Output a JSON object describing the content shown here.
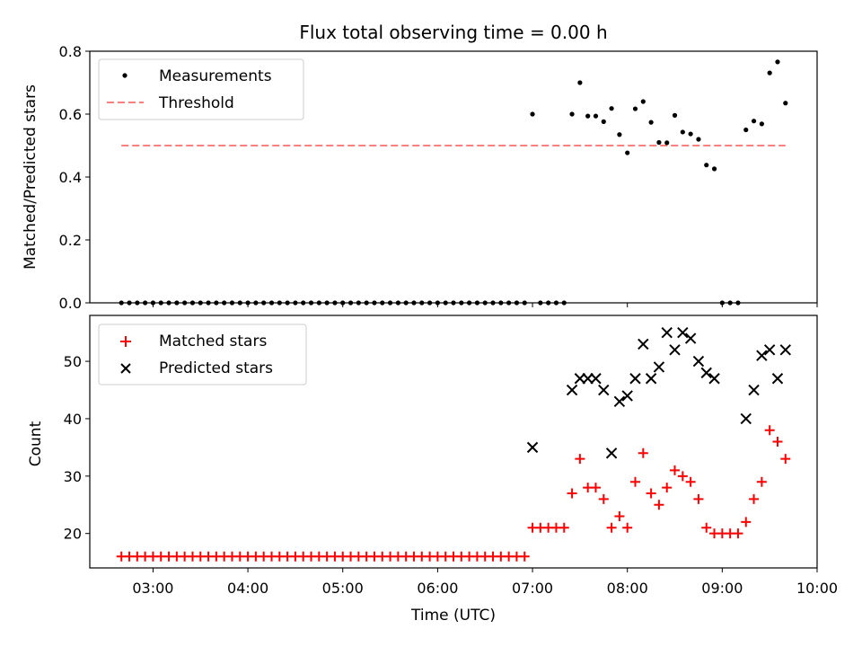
{
  "chart_data": [
    {
      "type": "scatter",
      "title": "Flux total observing time = 0.00 h",
      "xlabel": "",
      "ylabel": "Matched/Predicted stars",
      "xlim": [
        "02:20",
        "10:00"
      ],
      "ylim": [
        0,
        0.8
      ],
      "yticks": [
        "0.0",
        "0.2",
        "0.4",
        "0.6",
        "0.8"
      ],
      "legend": {
        "placement": "top-left",
        "labels": [
          "Measurements",
          "Threshold"
        ]
      },
      "threshold": {
        "value": 0.5,
        "x_from": "02:40",
        "x_to": "09:40",
        "color": "#ff7f7f"
      },
      "series": [
        {
          "name": "Measurements",
          "color": "#000000",
          "x": [
            "02:40",
            "02:45",
            "02:50",
            "02:55",
            "03:00",
            "03:05",
            "03:10",
            "03:15",
            "03:20",
            "03:25",
            "03:30",
            "03:35",
            "03:40",
            "03:45",
            "03:50",
            "03:55",
            "04:00",
            "04:05",
            "04:10",
            "04:15",
            "04:20",
            "04:25",
            "04:30",
            "04:35",
            "04:40",
            "04:45",
            "04:50",
            "04:55",
            "05:00",
            "05:05",
            "05:10",
            "05:15",
            "05:20",
            "05:25",
            "05:30",
            "05:35",
            "05:40",
            "05:45",
            "05:50",
            "05:55",
            "06:00",
            "06:05",
            "06:10",
            "06:15",
            "06:20",
            "06:25",
            "06:30",
            "06:35",
            "06:40",
            "06:45",
            "06:50",
            "06:55",
            "07:00",
            "07:05",
            "07:10",
            "07:15",
            "07:20",
            "07:25",
            "07:30",
            "07:35",
            "07:40",
            "07:45",
            "07:50",
            "07:55",
            "08:00",
            "08:05",
            "08:10",
            "08:15",
            "08:20",
            "08:25",
            "08:30",
            "08:35",
            "08:40",
            "08:45",
            "08:50",
            "08:55",
            "09:00",
            "09:05",
            "09:10",
            "09:15",
            "09:20",
            "09:25",
            "09:30",
            "09:35",
            "09:40"
          ],
          "y": [
            0,
            0,
            0,
            0,
            0,
            0,
            0,
            0,
            0,
            0,
            0,
            0,
            0,
            0,
            0,
            0,
            0,
            0,
            0,
            0,
            0,
            0,
            0,
            0,
            0,
            0,
            0,
            0,
            0,
            0,
            0,
            0,
            0,
            0,
            0,
            0,
            0,
            0,
            0,
            0,
            0,
            0,
            0,
            0,
            0,
            0,
            0,
            0,
            0,
            0,
            0,
            0,
            0.6,
            0,
            0,
            0,
            0,
            0.6,
            0.7,
            0.594,
            0.594,
            0.576,
            0.618,
            0.535,
            0.477,
            0.617,
            0.64,
            0.574,
            0.51,
            0.509,
            0.596,
            0.543,
            0.537,
            0.52,
            0.438,
            0.426,
            0,
            0,
            0,
            0.55,
            0.578,
            0.569,
            0.731,
            0.766,
            0.635
          ]
        }
      ]
    },
    {
      "type": "scatter",
      "title": "",
      "xlabel": "Time (UTC)",
      "ylabel": "Count",
      "xlim": [
        "02:20",
        "10:00"
      ],
      "ylim": [
        14,
        58
      ],
      "xticks": [
        "03:00",
        "04:00",
        "05:00",
        "06:00",
        "07:00",
        "08:00",
        "09:00",
        "10:00"
      ],
      "yticks": [
        "20",
        "30",
        "40",
        "50"
      ],
      "legend": {
        "placement": "top-left",
        "labels": [
          "Matched stars",
          "Predicted stars"
        ]
      },
      "series": [
        {
          "name": "Matched stars",
          "color": "#ff0000",
          "marker": "plus",
          "x": [
            "02:40",
            "02:45",
            "02:50",
            "02:55",
            "03:00",
            "03:05",
            "03:10",
            "03:15",
            "03:20",
            "03:25",
            "03:30",
            "03:35",
            "03:40",
            "03:45",
            "03:50",
            "03:55",
            "04:00",
            "04:05",
            "04:10",
            "04:15",
            "04:20",
            "04:25",
            "04:30",
            "04:35",
            "04:40",
            "04:45",
            "04:50",
            "04:55",
            "05:00",
            "05:05",
            "05:10",
            "05:15",
            "05:20",
            "05:25",
            "05:30",
            "05:35",
            "05:40",
            "05:45",
            "05:50",
            "05:55",
            "06:00",
            "06:05",
            "06:10",
            "06:15",
            "06:20",
            "06:25",
            "06:30",
            "06:35",
            "06:40",
            "06:45",
            "06:50",
            "06:55",
            "07:00",
            "07:05",
            "07:10",
            "07:15",
            "07:20",
            "07:25",
            "07:30",
            "07:35",
            "07:40",
            "07:45",
            "07:50",
            "07:55",
            "08:00",
            "08:05",
            "08:10",
            "08:15",
            "08:20",
            "08:25",
            "08:30",
            "08:35",
            "08:40",
            "08:45",
            "08:50",
            "08:55",
            "09:00",
            "09:05",
            "09:10",
            "09:15",
            "09:20",
            "09:25",
            "09:30",
            "09:35",
            "09:40"
          ],
          "y": [
            16,
            16,
            16,
            16,
            16,
            16,
            16,
            16,
            16,
            16,
            16,
            16,
            16,
            16,
            16,
            16,
            16,
            16,
            16,
            16,
            16,
            16,
            16,
            16,
            16,
            16,
            16,
            16,
            16,
            16,
            16,
            16,
            16,
            16,
            16,
            16,
            16,
            16,
            16,
            16,
            16,
            16,
            16,
            16,
            16,
            16,
            16,
            16,
            16,
            16,
            16,
            16,
            21,
            21,
            21,
            21,
            21,
            27,
            33,
            28,
            28,
            26,
            21,
            23,
            21,
            29,
            34,
            27,
            25,
            28,
            31,
            30,
            29,
            26,
            21,
            20,
            20,
            20,
            20,
            22,
            26,
            29,
            38,
            36,
            33
          ]
        },
        {
          "name": "Predicted stars",
          "color": "#000000",
          "marker": "x",
          "x": [
            "07:00",
            "07:25",
            "07:30",
            "07:35",
            "07:40",
            "07:45",
            "07:50",
            "07:55",
            "08:00",
            "08:05",
            "08:10",
            "08:15",
            "08:20",
            "08:25",
            "08:30",
            "08:35",
            "08:40",
            "08:45",
            "08:50",
            "08:55",
            "09:15",
            "09:20",
            "09:25",
            "09:30",
            "09:35",
            "09:40"
          ],
          "y": [
            35,
            45,
            47,
            47,
            47,
            45,
            34,
            43,
            44,
            47,
            53,
            47,
            49,
            55,
            52,
            55,
            54,
            50,
            48,
            47,
            40,
            45,
            51,
            52,
            47,
            52
          ]
        }
      ]
    }
  ]
}
